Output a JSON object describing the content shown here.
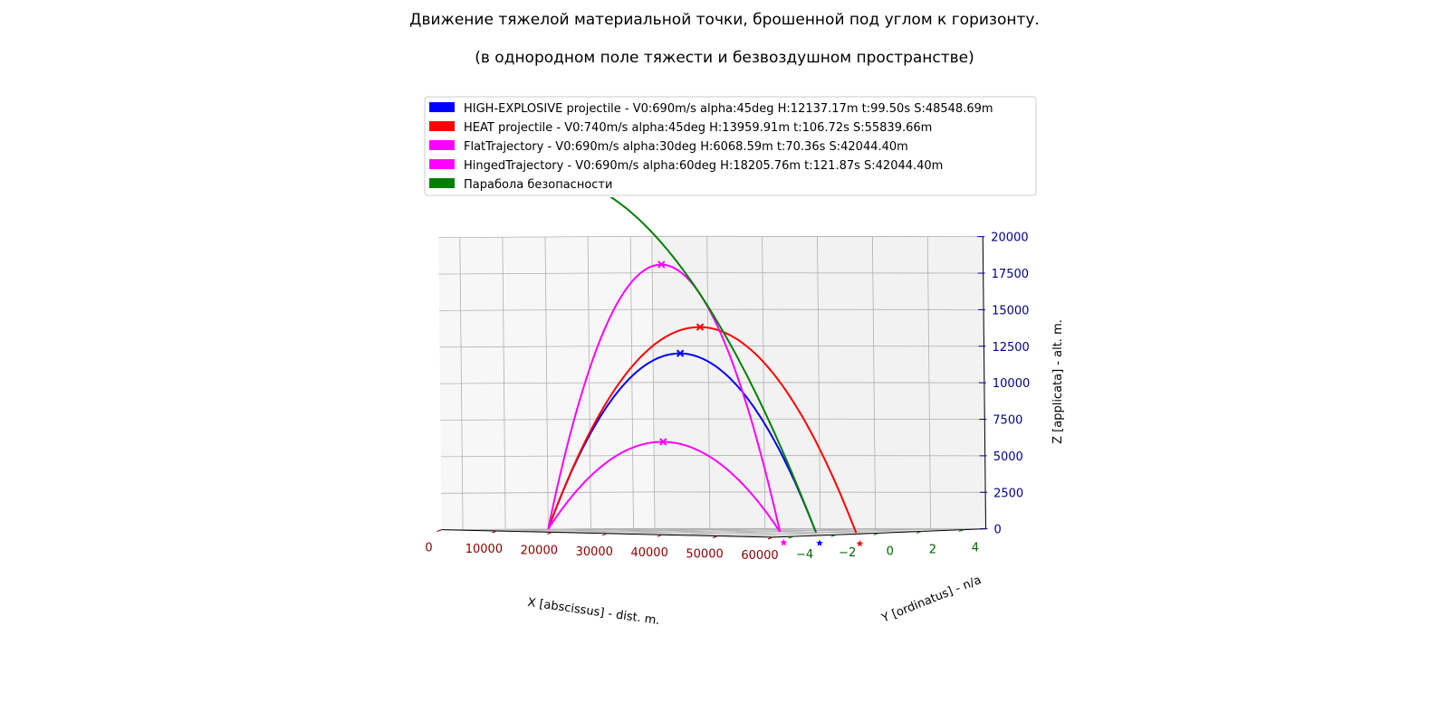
{
  "chart_data": {
    "type": "line",
    "projection": "3d",
    "title": "Движение тяжелой материальной точки, брошенной под углом к горизонту.",
    "subtitle": "(в однородном поле тяжести и безвоздушном пространстве)",
    "xlabel": "X [abscissus] - dist. m.",
    "ylabel": "Y [ordinatus] - n/a",
    "zlabel": "Z [applicata] - alt. m.",
    "xlim": [
      0,
      60000
    ],
    "ylim": [
      -5,
      5
    ],
    "zlim": [
      0,
      20000
    ],
    "x_ticks": [
      "0",
      "10000",
      "20000",
      "30000",
      "40000",
      "50000",
      "60000"
    ],
    "y_ticks": [
      "−4",
      "−2",
      "0",
      "2",
      "4"
    ],
    "z_ticks": [
      "0",
      "2500",
      "5000",
      "7500",
      "10000",
      "12500",
      "15000",
      "17500",
      "20000"
    ],
    "tick_colors": {
      "x": "#8b0000",
      "y": "#006400",
      "z": "#00008b"
    },
    "grid": true,
    "legend_position": "top",
    "series": [
      {
        "name": "HIGH-EXPLOSIVE projectile - V0:690m/s alpha:45deg H:12137.17m t:99.50s S:48548.69m",
        "color": "#0000ff",
        "v0": 690,
        "alpha": 45,
        "H": 12137.17,
        "t": 99.5,
        "S": 48548.69,
        "y": 0
      },
      {
        "name": "HEAT projectile - V0:740m/s alpha:45deg H:13959.91m t:106.72s S:55839.66m",
        "color": "#ff0000",
        "v0": 740,
        "alpha": 45,
        "H": 13959.91,
        "t": 106.72,
        "S": 55839.66,
        "y": 0
      },
      {
        "name": "FlatTrajectory - V0:690m/s alpha:30deg H:6068.59m t:70.36s S:42044.40m",
        "color": "#ff00ff",
        "v0": 690,
        "alpha": 30,
        "H": 6068.59,
        "t": 70.36,
        "S": 42044.4,
        "y": 0
      },
      {
        "name": "HingedTrajectory - V0:690m/s alpha:60deg H:18205.76m t:121.87s S:42044.40m",
        "color": "#ff00ff",
        "v0": 690,
        "alpha": 60,
        "H": 18205.76,
        "t": 121.87,
        "S": 42044.4,
        "y": 0
      },
      {
        "name": "Парабола безопасности",
        "color": "#008000",
        "v0": 690,
        "y": 0
      }
    ]
  }
}
